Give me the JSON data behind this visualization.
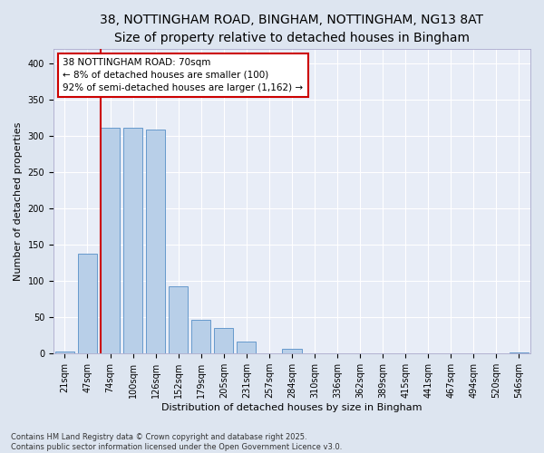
{
  "title_line1": "38, NOTTINGHAM ROAD, BINGHAM, NOTTINGHAM, NG13 8AT",
  "title_line2": "Size of property relative to detached houses in Bingham",
  "xlabel": "Distribution of detached houses by size in Bingham",
  "ylabel": "Number of detached properties",
  "categories": [
    "21sqm",
    "47sqm",
    "74sqm",
    "100sqm",
    "126sqm",
    "152sqm",
    "179sqm",
    "205sqm",
    "231sqm",
    "257sqm",
    "284sqm",
    "310sqm",
    "336sqm",
    "362sqm",
    "389sqm",
    "415sqm",
    "441sqm",
    "467sqm",
    "494sqm",
    "520sqm",
    "546sqm"
  ],
  "values": [
    3,
    138,
    311,
    311,
    309,
    93,
    46,
    35,
    17,
    0,
    6,
    0,
    0,
    0,
    0,
    0,
    0,
    0,
    0,
    0,
    1
  ],
  "bar_color": "#b8cfe8",
  "bar_edge_color": "#6699cc",
  "vline_color": "#cc0000",
  "annotation_text": "38 NOTTINGHAM ROAD: 70sqm\n← 8% of detached houses are smaller (100)\n92% of semi-detached houses are larger (1,162) →",
  "annotation_box_color": "#ffffff",
  "annotation_box_edge_color": "#cc0000",
  "ylim": [
    0,
    420
  ],
  "yticks": [
    0,
    50,
    100,
    150,
    200,
    250,
    300,
    350,
    400
  ],
  "background_color": "#dde5f0",
  "plot_bg_color": "#e8edf7",
  "grid_color": "#ffffff",
  "footer_text": "Contains HM Land Registry data © Crown copyright and database right 2025.\nContains public sector information licensed under the Open Government Licence v3.0.",
  "title_fontsize": 10,
  "subtitle_fontsize": 9,
  "axis_label_fontsize": 8,
  "tick_fontsize": 7,
  "annotation_fontsize": 7.5,
  "footer_fontsize": 6
}
